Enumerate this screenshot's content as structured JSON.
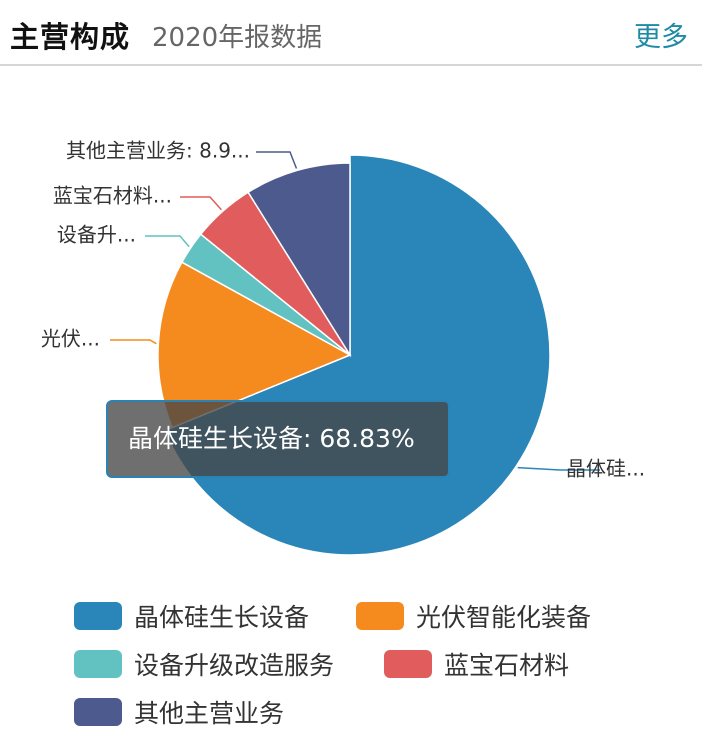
{
  "header": {
    "title": "主营构成",
    "subtitle": "2020年报数据",
    "more_label": "更多"
  },
  "chart_data": {
    "type": "pie",
    "categories": [
      "晶体硅生长设备",
      "光伏智能化装备",
      "设备升级改造服务",
      "蓝宝石材料",
      "其他主营业务"
    ],
    "values": [
      68.83,
      14.2,
      2.8,
      5.27,
      8.9
    ],
    "colors": [
      "#2a86b8",
      "#f58a1f",
      "#62c2c2",
      "#e15c5c",
      "#4d5a8e"
    ],
    "slice_labels": [
      "晶体硅...",
      "光伏...",
      "设备升...",
      "蓝宝石材料...",
      "其他主营业务: 8.9..."
    ],
    "legend_position": "bottom"
  },
  "tooltip": {
    "text": "晶体硅生长设备: 68.83%"
  }
}
